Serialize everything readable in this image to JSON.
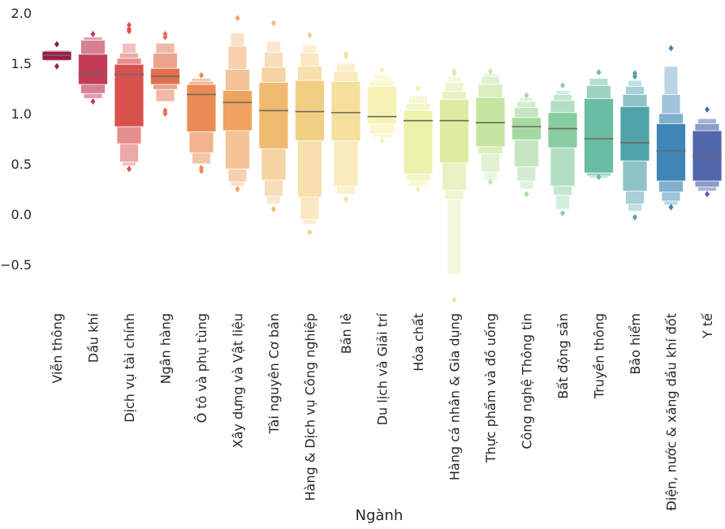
{
  "chart_data": {
    "type": "boxen",
    "title": "",
    "xlabel": "Ngành",
    "ylabel": "",
    "ylim": [
      -1.0,
      2.0
    ],
    "yticks": [
      2.0,
      1.5,
      1.0,
      0.5,
      0.0,
      -0.5
    ],
    "ytick_labels": [
      "2.0",
      "1.5",
      "1.0",
      "0.5",
      "0.0",
      "−0.5"
    ],
    "grid": false,
    "palette": "Spectral",
    "categories": [
      {
        "name": "Viễn thông",
        "color": "#9e1a44",
        "median": 1.58,
        "levels": [
          [
            1.53,
            1.62
          ],
          [
            1.52,
            1.63
          ]
        ],
        "outliers": [
          1.69,
          1.47
        ]
      },
      {
        "name": "Dầu khí",
        "color": "#c23b57",
        "median": 1.4,
        "levels": [
          [
            1.29,
            1.59
          ],
          [
            1.2,
            1.73
          ],
          [
            1.15,
            1.76
          ]
        ],
        "outliers": [
          1.79,
          1.12
        ]
      },
      {
        "name": "Dịch vụ tài chính",
        "color": "#d9514d",
        "median": 1.39,
        "levels": [
          [
            0.87,
            1.49
          ],
          [
            0.7,
            1.55
          ],
          [
            0.52,
            1.6
          ],
          [
            0.48,
            1.7
          ]
        ],
        "outliers": [
          1.88,
          1.84,
          1.82,
          0.45
        ]
      },
      {
        "name": "Ngân hàng",
        "color": "#e2704d",
        "median": 1.37,
        "levels": [
          [
            1.29,
            1.45
          ],
          [
            1.24,
            1.6
          ],
          [
            1.12,
            1.7
          ]
        ],
        "outliers": [
          1.79,
          1.76,
          1.03,
          1.0
        ]
      },
      {
        "name": "Ô tô và phụ tùng",
        "color": "#e98b53",
        "median": 1.19,
        "levels": [
          [
            0.82,
            1.29
          ],
          [
            0.61,
            1.32
          ],
          [
            0.5,
            1.35
          ]
        ],
        "outliers": [
          1.38,
          0.46,
          0.43
        ]
      },
      {
        "name": "Xây dựng và Vật liệu",
        "color": "#eea35f",
        "median": 1.11,
        "levels": [
          [
            0.83,
            1.23
          ],
          [
            0.45,
            1.44
          ],
          [
            0.32,
            1.67
          ],
          [
            0.28,
            1.8
          ]
        ],
        "outliers": [
          1.95,
          0.25
        ]
      },
      {
        "name": "Tài nguyên Cơ bản",
        "color": "#f0bb70",
        "median": 1.03,
        "levels": [
          [
            0.65,
            1.31
          ],
          [
            0.34,
            1.46
          ],
          [
            0.18,
            1.61
          ],
          [
            0.1,
            1.72
          ]
        ],
        "outliers": [
          1.9,
          0.05
        ]
      },
      {
        "name": "Hàng & Dịch vụ Công nghiệp",
        "color": "#f2d083",
        "median": 1.02,
        "levels": [
          [
            0.73,
            1.33
          ],
          [
            0.17,
            1.47
          ],
          [
            -0.05,
            1.6
          ],
          [
            -0.1,
            1.68
          ]
        ],
        "outliers": [
          1.78,
          -0.18
        ]
      },
      {
        "name": "Bán lẻ",
        "color": "#f5e09b",
        "median": 1.01,
        "levels": [
          [
            0.73,
            1.32
          ],
          [
            0.28,
            1.42
          ],
          [
            0.2,
            1.5
          ]
        ],
        "outliers": [
          1.59,
          1.57,
          0.15
        ]
      },
      {
        "name": "Du lịch và Giải trí",
        "color": "#f7f2b5",
        "median": 0.97,
        "levels": [
          [
            0.9,
            1.27
          ],
          [
            0.8,
            1.33
          ],
          [
            0.76,
            1.39
          ]
        ],
        "outliers": [
          1.43,
          0.73
        ]
      },
      {
        "name": "Hóa chất",
        "color": "#ecf2ab",
        "median": 0.93,
        "levels": [
          [
            0.4,
            1.03
          ],
          [
            0.33,
            1.1
          ],
          [
            0.28,
            1.18
          ]
        ],
        "outliers": [
          1.25,
          0.25
        ]
      },
      {
        "name": "Hàng cá nhân & Gia dụng",
        "color": "#dceda2",
        "median": 0.93,
        "levels": [
          [
            0.51,
            1.14
          ],
          [
            0.24,
            1.22
          ],
          [
            0.15,
            1.31
          ],
          [
            -0.6,
            1.37
          ]
        ],
        "outliers": [
          1.42,
          1.4,
          -0.85
        ]
      },
      {
        "name": "Thực phẩm và đồ uống",
        "color": "#c5e5a0",
        "median": 0.91,
        "levels": [
          [
            0.67,
            1.16
          ],
          [
            0.6,
            1.29
          ],
          [
            0.42,
            1.37
          ],
          [
            0.34,
            1.4
          ]
        ],
        "outliers": [
          1.42,
          0.32
        ]
      },
      {
        "name": "Công nghệ Thông tin",
        "color": "#a6d9a2",
        "median": 0.87,
        "levels": [
          [
            0.74,
            0.96
          ],
          [
            0.47,
            1.06
          ],
          [
            0.33,
            1.12
          ],
          [
            0.25,
            1.16
          ]
        ],
        "outliers": [
          1.18,
          0.2
        ]
      },
      {
        "name": "Bất động sản",
        "color": "#88cca2",
        "median": 0.85,
        "levels": [
          [
            0.66,
            1.01
          ],
          [
            0.28,
            1.13
          ],
          [
            0.19,
            1.19
          ],
          [
            0.05,
            1.23
          ]
        ],
        "outliers": [
          1.28,
          0.01
        ]
      },
      {
        "name": "Truyền thông",
        "color": "#6abca2",
        "median": 0.75,
        "levels": [
          [
            0.41,
            1.15
          ],
          [
            0.38,
            1.28
          ],
          [
            0.36,
            1.35
          ]
        ],
        "outliers": [
          1.41,
          0.37
        ]
      },
      {
        "name": "Bảo hiểm",
        "color": "#4fa3a9",
        "median": 0.71,
        "levels": [
          [
            0.53,
            1.07
          ],
          [
            0.23,
            1.19
          ],
          [
            0.1,
            1.27
          ],
          [
            0.03,
            1.33
          ]
        ],
        "outliers": [
          1.4,
          1.37,
          -0.03
        ]
      },
      {
        "name": "Điện, nước & xăng dầu khí đốt",
        "color": "#3e86b5",
        "median": 0.63,
        "levels": [
          [
            0.33,
            0.9
          ],
          [
            0.22,
            1.0
          ],
          [
            0.13,
            1.19
          ],
          [
            0.09,
            1.47
          ]
        ],
        "outliers": [
          1.65,
          0.07
        ]
      },
      {
        "name": "Y tế",
        "color": "#5067ac",
        "median": 0.57,
        "levels": [
          [
            0.33,
            0.83
          ],
          [
            0.27,
            0.9
          ],
          [
            0.23,
            0.95
          ]
        ],
        "outliers": [
          1.04,
          0.2
        ]
      }
    ]
  }
}
